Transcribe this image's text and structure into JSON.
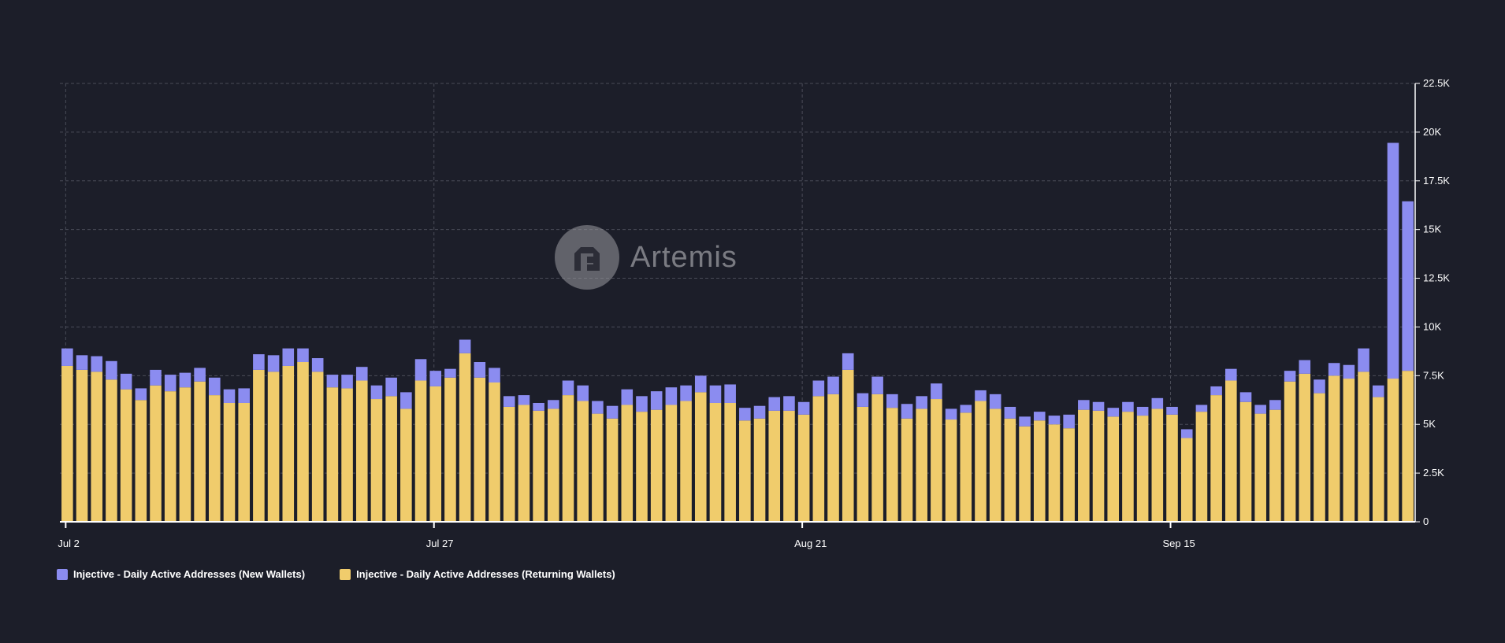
{
  "colors": {
    "background": "#1c1e29",
    "new_wallets": "#8b8cf0",
    "returning_wallets": "#f0cc6c",
    "grid": "#4a4c58",
    "axis": "#ffffff"
  },
  "watermark": {
    "text": "Artemis",
    "icon": "artemis-logo-icon"
  },
  "chart_data": {
    "type": "bar",
    "stacked": true,
    "x_tick_labels": [
      "Jul 2",
      "Jul 27",
      "Aug 21",
      "Sep 15"
    ],
    "x_tick_indices": [
      0,
      25,
      50,
      75
    ],
    "y_ticks": [
      "0",
      "2.5K",
      "5K",
      "7.5K",
      "10K",
      "12.5K",
      "15K",
      "17.5K",
      "20K",
      "22.5K"
    ],
    "ylim": [
      0,
      22500
    ],
    "grid": true,
    "legend_position": "bottom-left",
    "series": [
      {
        "name": "Injective - Daily Active Addresses (Returning Wallets)",
        "color": "#f0cc6c",
        "values": [
          8000,
          7800,
          7700,
          7300,
          6800,
          6250,
          7000,
          6700,
          6900,
          7200,
          6500,
          6100,
          6100,
          7800,
          7700,
          8000,
          8200,
          7700,
          6900,
          6850,
          7250,
          6300,
          6450,
          5800,
          7250,
          6950,
          7400,
          8650,
          7400,
          7150,
          5900,
          6000,
          5700,
          5800,
          6500,
          6200,
          5550,
          5300,
          6000,
          5650,
          5750,
          6000,
          6200,
          6650,
          6100,
          6100,
          5200,
          5300,
          5700,
          5700,
          5500,
          6450,
          6550,
          7800,
          5900,
          6550,
          5850,
          5300,
          5800,
          6300,
          5250,
          5600,
          6200,
          5800,
          5300,
          4900,
          5200,
          5000,
          4800,
          5750,
          5700,
          5400,
          5650,
          5450,
          5800,
          5500,
          4300,
          5650,
          6500,
          7250,
          6150,
          5550,
          5750,
          7200,
          7600,
          6600,
          7500,
          7350,
          7700,
          6400,
          7350,
          7750
        ]
      },
      {
        "name": "Injective - Daily Active Addresses (New Wallets)",
        "color": "#8b8cf0",
        "values": [
          900,
          750,
          800,
          950,
          800,
          600,
          800,
          850,
          750,
          700,
          900,
          700,
          750,
          800,
          850,
          900,
          700,
          700,
          650,
          700,
          700,
          700,
          950,
          850,
          1100,
          800,
          450,
          700,
          800,
          750,
          550,
          500,
          400,
          450,
          750,
          800,
          650,
          650,
          800,
          800,
          950,
          900,
          800,
          850,
          900,
          950,
          650,
          650,
          700,
          750,
          650,
          800,
          900,
          850,
          700,
          900,
          700,
          750,
          650,
          800,
          550,
          400,
          550,
          750,
          600,
          500,
          450,
          450,
          700,
          500,
          450,
          450,
          500,
          450,
          550,
          400,
          450,
          350,
          450,
          600,
          500,
          450,
          500,
          550,
          700,
          700,
          650,
          700,
          1200,
          600,
          12100,
          8700
        ]
      }
    ],
    "xlabel": "",
    "ylabel": ""
  },
  "legend": {
    "items": [
      {
        "label": "Injective - Daily Active Addresses (New Wallets)",
        "color": "#8b8cf0"
      },
      {
        "label": "Injective - Daily Active Addresses (Returning Wallets)",
        "color": "#f0cc6c"
      }
    ]
  }
}
